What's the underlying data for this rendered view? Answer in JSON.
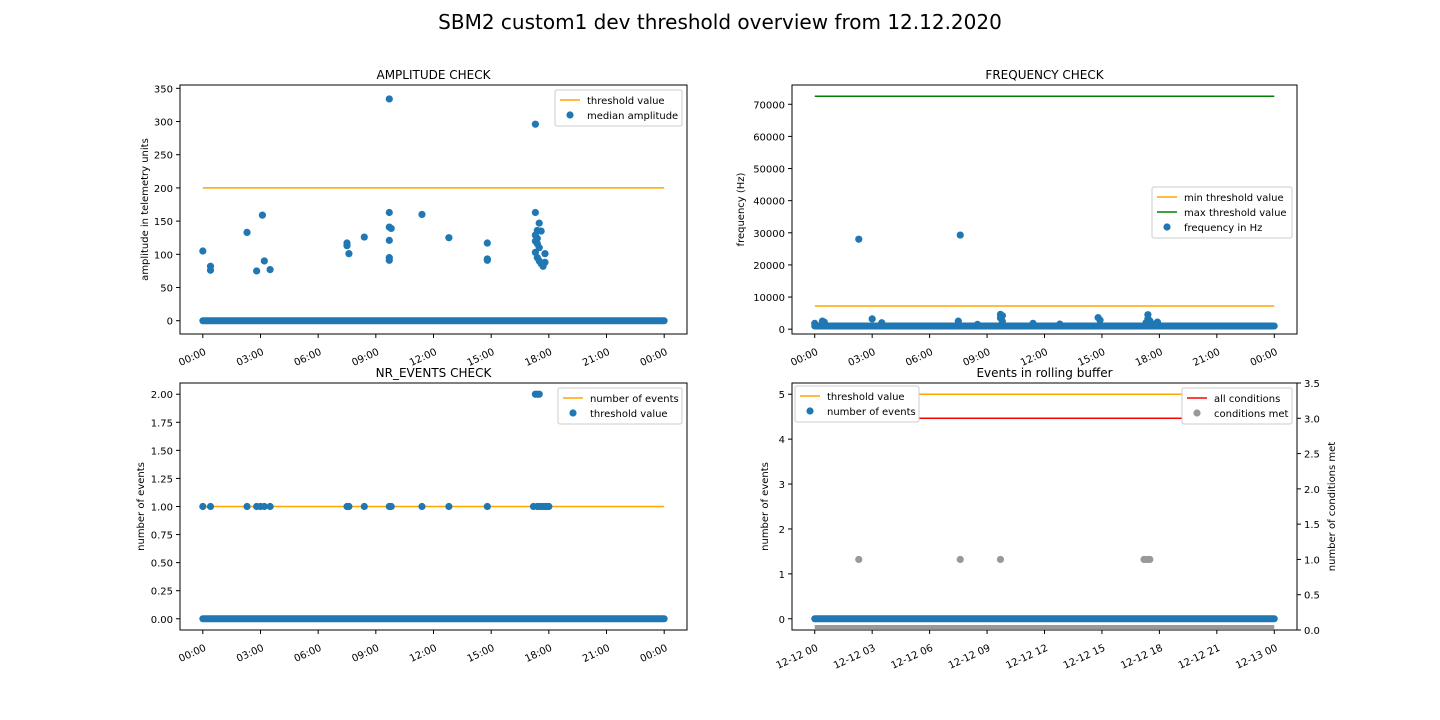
{
  "figure": {
    "title": "SBM2 custom1 dev threshold overview from 12.12.2020"
  },
  "colors": {
    "threshold": "#ffa500",
    "max_threshold": "#008000",
    "points": "#1f77b4",
    "all_conditions": "#ff0000",
    "conditions_met": "#999999"
  },
  "chart_data": [
    {
      "id": "amplitude",
      "type": "scatter",
      "title": "AMPLITUDE CHECK",
      "xlabel": "",
      "ylabel": "amplitude in telemetry units",
      "xlim_hours": [
        0,
        24
      ],
      "ylim": [
        -20,
        355
      ],
      "x_ticks": [
        "00:00",
        "03:00",
        "06:00",
        "09:00",
        "12:00",
        "15:00",
        "18:00",
        "21:00",
        "00:00"
      ],
      "y_ticks": [
        0,
        50,
        100,
        150,
        200,
        250,
        300,
        350
      ],
      "legend": {
        "position": "top-right",
        "entries": [
          "threshold value",
          "median amplitude"
        ]
      },
      "lines": [
        {
          "name": "threshold value",
          "value": 200,
          "color": "#ffa500"
        }
      ],
      "baseline": {
        "value": 0,
        "from": 0,
        "to": 24
      },
      "points": [
        [
          0.0,
          105
        ],
        [
          0.4,
          82
        ],
        [
          0.4,
          76
        ],
        [
          2.3,
          133
        ],
        [
          2.8,
          75
        ],
        [
          3.1,
          159
        ],
        [
          3.2,
          90
        ],
        [
          3.5,
          77
        ],
        [
          7.5,
          117
        ],
        [
          7.5,
          113
        ],
        [
          7.6,
          101
        ],
        [
          8.4,
          126
        ],
        [
          9.7,
          334
        ],
        [
          9.7,
          163
        ],
        [
          9.7,
          141
        ],
        [
          9.8,
          139
        ],
        [
          9.7,
          121
        ],
        [
          9.7,
          95
        ],
        [
          9.7,
          91
        ],
        [
          11.4,
          160
        ],
        [
          12.8,
          125
        ],
        [
          14.8,
          117
        ],
        [
          14.8,
          93
        ],
        [
          14.8,
          91
        ],
        [
          17.3,
          296
        ],
        [
          17.3,
          163
        ],
        [
          17.5,
          147
        ],
        [
          17.4,
          136
        ],
        [
          17.6,
          135
        ],
        [
          17.3,
          129
        ],
        [
          17.4,
          124
        ],
        [
          17.3,
          120
        ],
        [
          17.4,
          116
        ],
        [
          17.5,
          110
        ],
        [
          17.3,
          103
        ],
        [
          17.8,
          101
        ],
        [
          17.4,
          95
        ],
        [
          17.5,
          90
        ],
        [
          17.6,
          86
        ],
        [
          17.8,
          88
        ],
        [
          17.7,
          82
        ]
      ]
    },
    {
      "id": "frequency",
      "type": "scatter",
      "title": "FREQUENCY CHECK",
      "xlabel": "",
      "ylabel": "frequency (Hz)",
      "xlim_hours": [
        0,
        24
      ],
      "ylim": [
        -1500,
        76000
      ],
      "x_ticks": [
        "00:00",
        "03:00",
        "06:00",
        "09:00",
        "12:00",
        "15:00",
        "18:00",
        "21:00",
        "00:00"
      ],
      "y_ticks": [
        0,
        10000,
        20000,
        30000,
        40000,
        50000,
        60000,
        70000
      ],
      "legend": {
        "position": "center-right",
        "entries": [
          "min threshold value",
          "max threshold value",
          "frequency in Hz"
        ]
      },
      "lines": [
        {
          "name": "min threshold value",
          "value": 7200,
          "color": "#ffa500"
        },
        {
          "name": "max threshold value",
          "value": 72500,
          "color": "#008000"
        }
      ],
      "baseline": {
        "value": 1000,
        "from": 0,
        "to": 24
      },
      "points": [
        [
          0.0,
          1800
        ],
        [
          0.4,
          2500
        ],
        [
          0.5,
          2200
        ],
        [
          2.3,
          28000
        ],
        [
          3.0,
          3200
        ],
        [
          3.5,
          2000
        ],
        [
          7.6,
          29300
        ],
        [
          7.5,
          2500
        ],
        [
          8.5,
          1500
        ],
        [
          9.7,
          4600
        ],
        [
          9.8,
          4200
        ],
        [
          9.7,
          3500
        ],
        [
          9.8,
          2400
        ],
        [
          11.4,
          1800
        ],
        [
          12.8,
          1600
        ],
        [
          14.8,
          3600
        ],
        [
          14.9,
          2800
        ],
        [
          17.4,
          4500
        ],
        [
          17.4,
          3300
        ],
        [
          17.5,
          2600
        ],
        [
          17.3,
          2000
        ],
        [
          17.9,
          2200
        ],
        [
          17.8,
          1700
        ]
      ]
    },
    {
      "id": "nr_events",
      "type": "scatter",
      "title": "NR_EVENTS CHECK",
      "xlabel": "",
      "ylabel": "number of events",
      "xlim_hours": [
        0,
        24
      ],
      "ylim": [
        -0.1,
        2.1
      ],
      "x_ticks": [
        "00:00",
        "03:00",
        "06:00",
        "09:00",
        "12:00",
        "15:00",
        "18:00",
        "21:00",
        "00:00"
      ],
      "y_ticks": [
        "0.00",
        "0.25",
        "0.50",
        "0.75",
        "1.00",
        "1.25",
        "1.50",
        "1.75",
        "2.00"
      ],
      "legend": {
        "position": "top-right",
        "entries": [
          "number of events",
          "threshold value"
        ]
      },
      "lines": [
        {
          "name": "number of events",
          "value": 1.0,
          "color": "#ffa500"
        }
      ],
      "baseline": {
        "value": 0,
        "from": 0,
        "to": 24
      },
      "points": [
        [
          0.0,
          1
        ],
        [
          0.4,
          1
        ],
        [
          2.3,
          1
        ],
        [
          2.8,
          1
        ],
        [
          3.0,
          1
        ],
        [
          3.2,
          1
        ],
        [
          3.5,
          1
        ],
        [
          7.5,
          1
        ],
        [
          7.6,
          1
        ],
        [
          8.4,
          1
        ],
        [
          9.7,
          1
        ],
        [
          9.8,
          1
        ],
        [
          11.4,
          1
        ],
        [
          12.8,
          1
        ],
        [
          14.8,
          1
        ],
        [
          17.2,
          1
        ],
        [
          17.4,
          1
        ],
        [
          17.5,
          1
        ],
        [
          17.6,
          1
        ],
        [
          17.7,
          1
        ],
        [
          17.8,
          1
        ],
        [
          17.9,
          1
        ],
        [
          18.0,
          1
        ],
        [
          17.3,
          2
        ],
        [
          17.4,
          2
        ],
        [
          17.5,
          2
        ]
      ]
    },
    {
      "id": "rolling",
      "type": "scatter",
      "title": "Events in rolling buffer",
      "xlabel": "",
      "ylabel": "number of events",
      "ylabel_right": "number of conditions met",
      "xlim_hours": [
        0,
        24
      ],
      "ylim": [
        -0.25,
        5.25
      ],
      "ylim_right": [
        0,
        3.5
      ],
      "x_ticks": [
        "12-12 00",
        "12-12 03",
        "12-12 06",
        "12-12 09",
        "12-12 12",
        "12-12 15",
        "12-12 18",
        "12-12 21",
        "12-13 00"
      ],
      "y_ticks": [
        0,
        1,
        2,
        3,
        4,
        5
      ],
      "y_ticks_right": [
        "0.0",
        "0.5",
        "1.0",
        "1.5",
        "2.0",
        "2.5",
        "3.0",
        "3.5"
      ],
      "legend_left": {
        "position": "top-left",
        "entries": [
          "threshold value",
          "number of events"
        ]
      },
      "legend_right": {
        "position": "top-right",
        "entries": [
          "all conditions",
          "conditions met"
        ]
      },
      "lines": [
        {
          "name": "threshold value",
          "value": 5,
          "color": "#ffa500",
          "axis": "left"
        },
        {
          "name": "all conditions",
          "value": 3,
          "color": "#ff0000",
          "axis": "right"
        }
      ],
      "baseline": {
        "value": 0,
        "from": 0,
        "to": 24
      },
      "points_right": [
        [
          2.3,
          1
        ],
        [
          7.6,
          1
        ],
        [
          9.7,
          1
        ],
        [
          17.2,
          1
        ],
        [
          17.3,
          1
        ],
        [
          17.4,
          1
        ],
        [
          17.5,
          1
        ]
      ],
      "right_baseline": {
        "value": 0,
        "from": 0,
        "to": 24
      }
    }
  ]
}
